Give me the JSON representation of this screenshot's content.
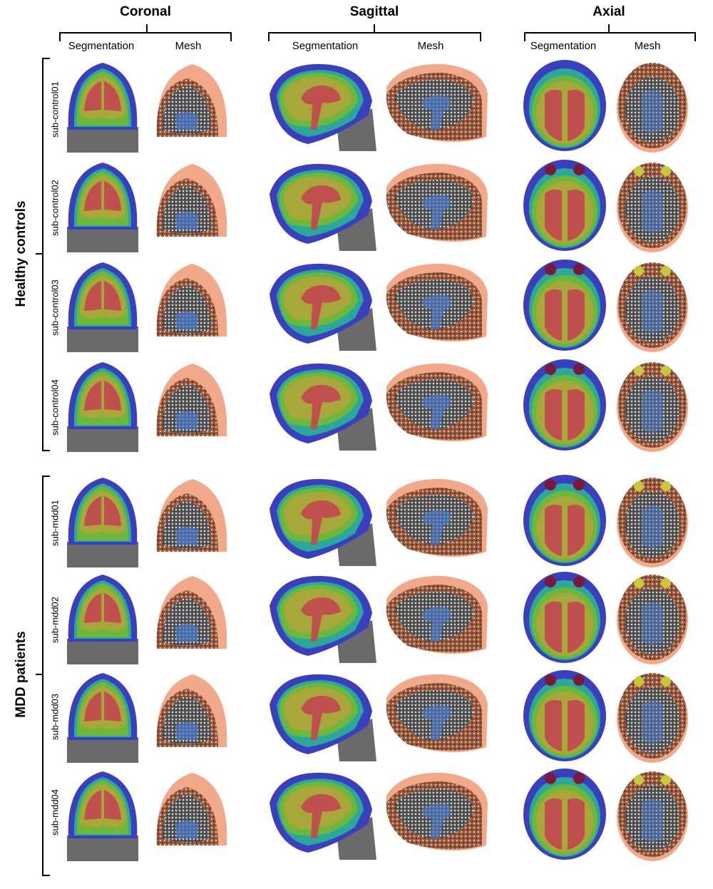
{
  "views": [
    {
      "title": "Coronal",
      "columns": [
        "Segmentation",
        "Mesh"
      ]
    },
    {
      "title": "Sagittal",
      "columns": [
        "Segmentation",
        "Mesh"
      ]
    },
    {
      "title": "Axial",
      "columns": [
        "Segmentation",
        "Mesh"
      ]
    }
  ],
  "groups": [
    {
      "label": "Healthy controls",
      "subjects": [
        "sub-control01",
        "sub-control02",
        "sub-control03",
        "sub-control04"
      ]
    },
    {
      "label": "MDD patients",
      "subjects": [
        "sub-mdd01",
        "sub-mdd02",
        "sub-mdd03",
        "sub-mdd04"
      ]
    }
  ],
  "colors": {
    "scalp_blue": "#3a3fbf",
    "csf_teal": "#2aa89a",
    "gray_matter_green": "#6cb83a",
    "gray_matter_olive": "#a8a83a",
    "white_matter_red": "#c0504d",
    "eye_maroon": "#7a1a3a",
    "mesh_skin": "#f2a98a",
    "mesh_speckle_brown": "#9a5a40",
    "mesh_speckle_gray": "#8a8a8a",
    "mesh_wm_blue": "#4a78c8",
    "mri_gray": "#6a6a6a"
  }
}
